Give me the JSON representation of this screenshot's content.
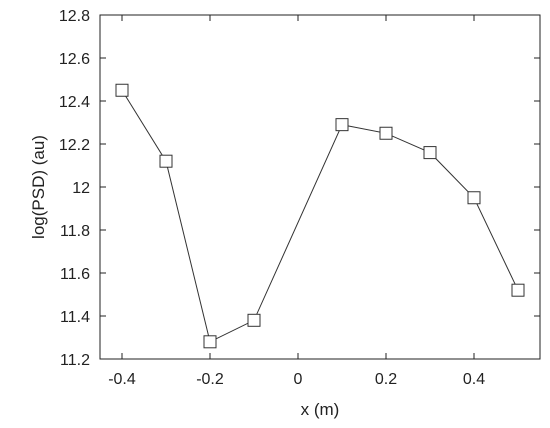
{
  "chart_data": {
    "type": "line",
    "xlabel": "x (m)",
    "ylabel": "log(PSD) (au)",
    "xlim": [
      -0.45,
      0.55
    ],
    "ylim": [
      11.2,
      12.8
    ],
    "xticks": [
      -0.4,
      -0.2,
      0,
      0.2,
      0.4
    ],
    "xtick_labels": [
      "-0.4",
      "-0.2",
      "0",
      "0.2",
      "0.4"
    ],
    "yticks": [
      11.2,
      11.4,
      11.6,
      11.8,
      12,
      12.2,
      12.4,
      12.6,
      12.8
    ],
    "ytick_labels": [
      "11.2",
      "11.4",
      "11.6",
      "11.8",
      "12",
      "12.2",
      "12.4",
      "12.6",
      "12.8"
    ],
    "grid": false,
    "marker": "open-square",
    "series": [
      {
        "x": [
          -0.4,
          -0.3,
          -0.2,
          -0.1,
          0.1,
          0.2,
          0.3,
          0.4,
          0.5
        ],
        "y": [
          12.45,
          12.12,
          11.28,
          11.38,
          12.29,
          12.25,
          12.16,
          11.95,
          11.52
        ]
      }
    ],
    "colors": {
      "line": "#333333",
      "marker": "#333333",
      "axis": "#222222"
    }
  }
}
